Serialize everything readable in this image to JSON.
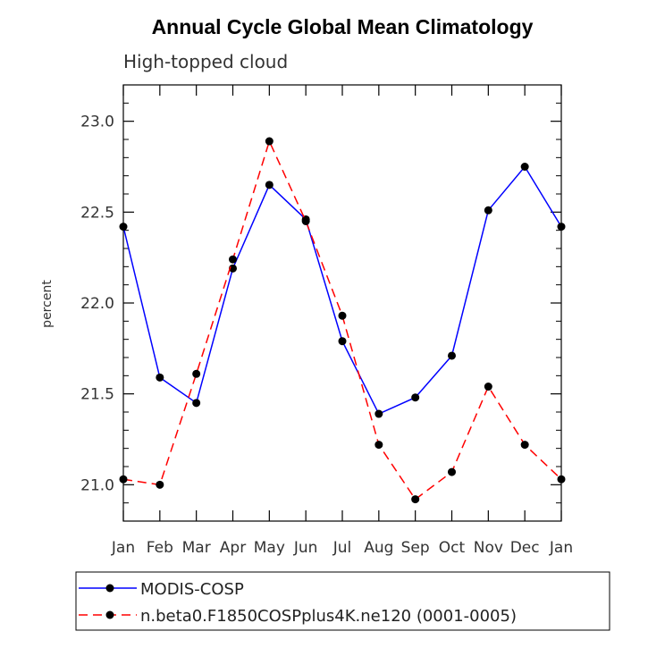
{
  "chart_data": {
    "type": "line",
    "title": "Annual Cycle Global Mean Climatology",
    "subtitle": "High-topped cloud",
    "xlabel": "",
    "ylabel": "percent",
    "categories": [
      "Jan",
      "Feb",
      "Mar",
      "Apr",
      "May",
      "Jun",
      "Jul",
      "Aug",
      "Sep",
      "Oct",
      "Nov",
      "Dec",
      "Jan"
    ],
    "ylim": [
      20.8,
      23.2
    ],
    "yticks": [
      21.0,
      21.5,
      22.0,
      22.5,
      23.0
    ],
    "ytick_labels": [
      "21.0",
      "21.5",
      "22.0",
      "22.5",
      "23.0"
    ],
    "legend_position": "bottom",
    "series": [
      {
        "name": "MODIS-COSP",
        "color": "#0000ff",
        "dash": "solid",
        "values": [
          22.42,
          21.59,
          21.45,
          22.19,
          22.65,
          22.46,
          21.79,
          21.39,
          21.48,
          21.71,
          22.51,
          22.75,
          22.42
        ]
      },
      {
        "name": "n.beta0.F1850COSPplus4K.ne120 (0001-0005)",
        "color": "#ff0000",
        "dash": "dashed",
        "values": [
          21.03,
          21.0,
          21.61,
          22.24,
          22.89,
          22.45,
          21.93,
          21.22,
          20.92,
          21.07,
          21.54,
          21.22,
          21.03
        ]
      }
    ]
  }
}
